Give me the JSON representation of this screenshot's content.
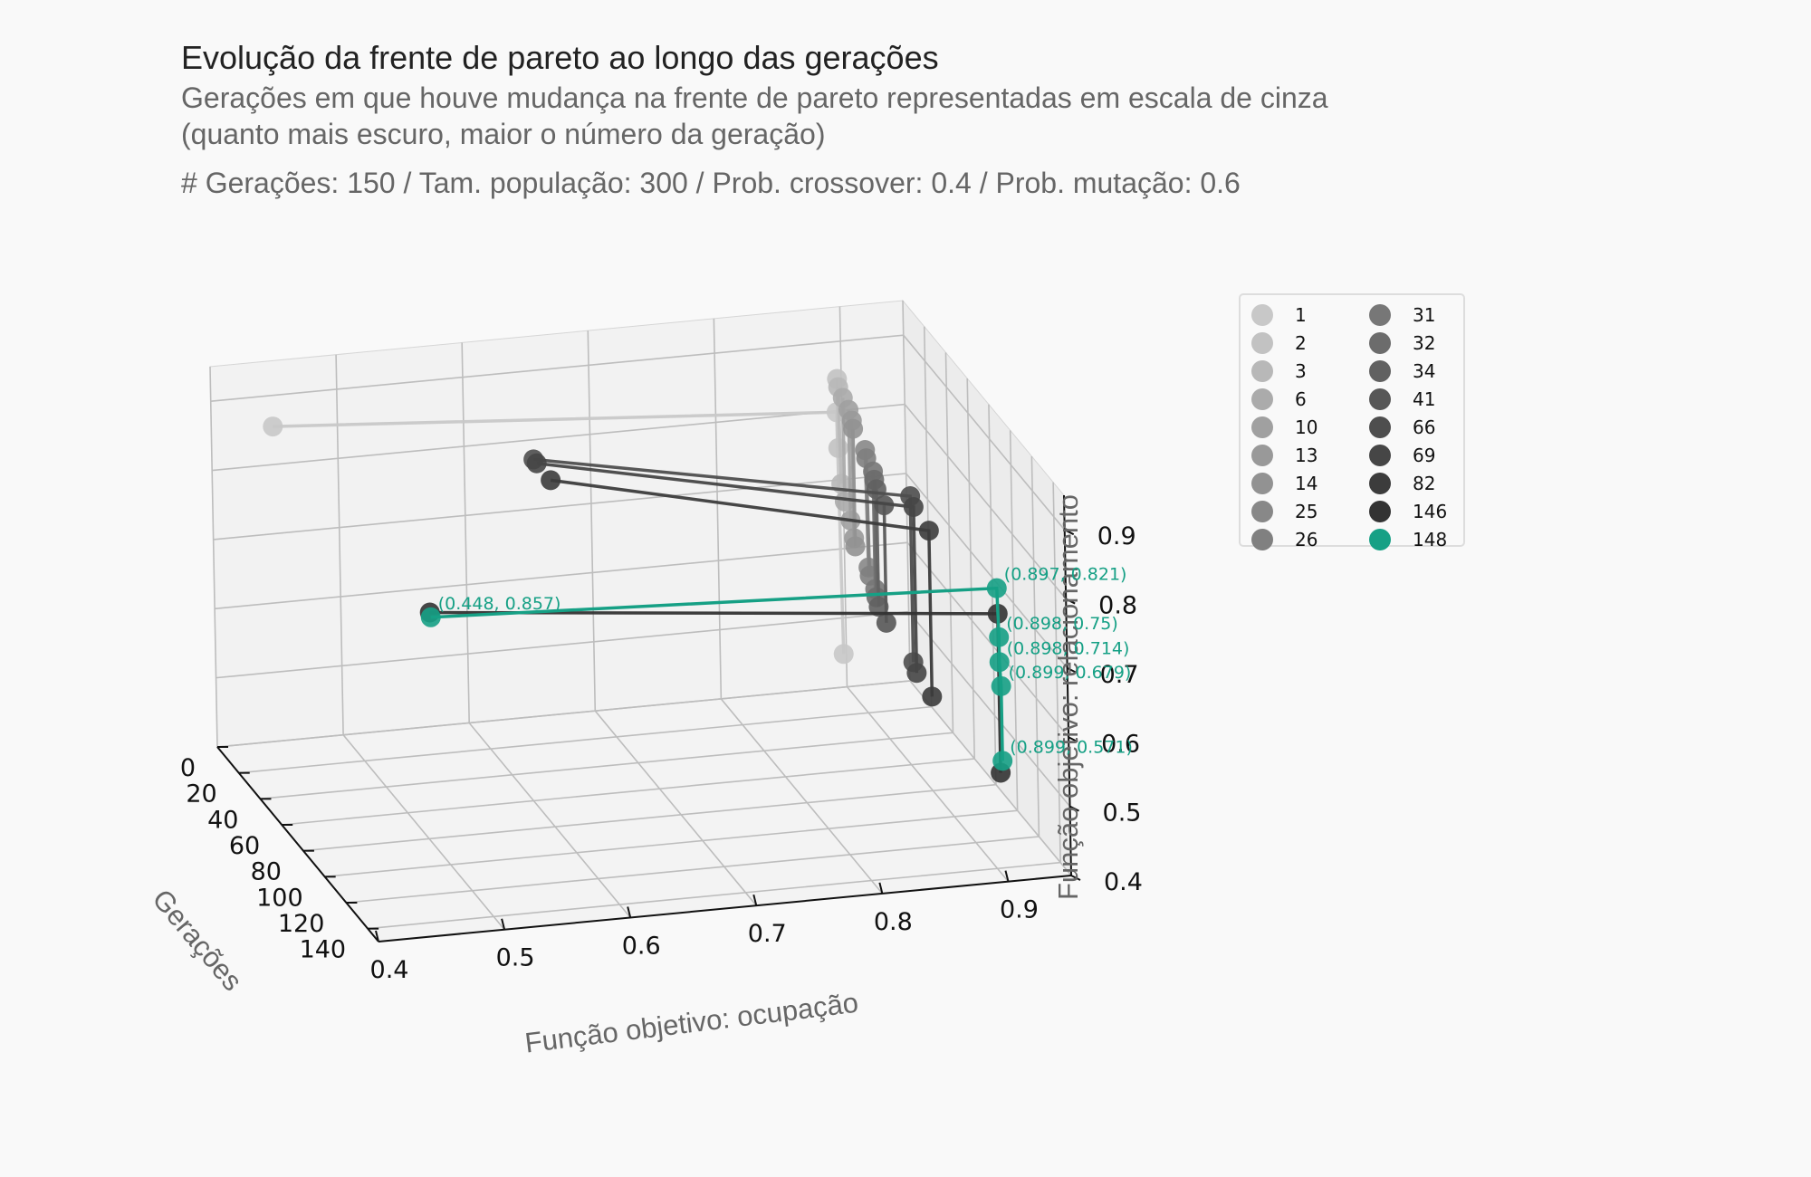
{
  "header": {
    "title": "Evolução da frente de pareto ao longo das gerações",
    "subtitle_line1": "Gerações em que houve mudança na frente de pareto representadas em escala de cinza",
    "subtitle_line2": "(quanto mais escuro, maior o número da geração)",
    "params": "# Gerações: 150 / Tam. população: 300 / Prob. crossover: 0.4 / Prob. mutação: 0.6"
  },
  "chart_data": {
    "type": "scatter",
    "projection": "3d",
    "xlabel": "Função objetivo: ocupação",
    "ylabel": "Gerações",
    "zlabel": "Função objetivo: relacionamento",
    "xlim": [
      0.4,
      0.95
    ],
    "ylim": [
      0,
      150
    ],
    "zlim": [
      0.4,
      0.95
    ],
    "x_ticks": [
      "0.4",
      "0.5",
      "0.6",
      "0.7",
      "0.8",
      "0.9"
    ],
    "y_ticks": [
      "0",
      "20",
      "40",
      "60",
      "80",
      "100",
      "120",
      "140"
    ],
    "z_ticks": [
      "0.4",
      "0.5",
      "0.6",
      "0.7",
      "0.8",
      "0.9"
    ],
    "grid": true,
    "legend_position": "top-right",
    "highlight_color": "#16a085",
    "series": [
      {
        "name": "1",
        "generation": 1,
        "color": "#c8c8c8",
        "points": [
          [
            0.448,
            0.857
          ],
          [
            0.895,
            0.8
          ],
          [
            0.897,
            0.45
          ]
        ]
      },
      {
        "name": "2",
        "generation": 2,
        "color": "#c2c2c2",
        "points": [
          [
            0.895,
            0.85
          ],
          [
            0.895,
            0.75
          ]
        ]
      },
      {
        "name": "3",
        "generation": 3,
        "color": "#b8b8b8",
        "points": [
          [
            0.895,
            0.84
          ],
          [
            0.896,
            0.7
          ]
        ]
      },
      {
        "name": "6",
        "generation": 6,
        "color": "#ababab",
        "points": [
          [
            0.896,
            0.83
          ],
          [
            0.896,
            0.68
          ]
        ]
      },
      {
        "name": "10",
        "generation": 10,
        "color": "#a0a0a0",
        "points": [
          [
            0.897,
            0.82
          ],
          [
            0.897,
            0.66
          ]
        ]
      },
      {
        "name": "13",
        "generation": 13,
        "color": "#999999",
        "points": [
          [
            0.897,
            0.81
          ],
          [
            0.897,
            0.64
          ]
        ]
      },
      {
        "name": "14",
        "generation": 14,
        "color": "#929292",
        "points": [
          [
            0.897,
            0.8
          ],
          [
            0.897,
            0.63
          ]
        ]
      },
      {
        "name": "25",
        "generation": 25,
        "color": "#888888",
        "points": [
          [
            0.897,
            0.79
          ],
          [
            0.898,
            0.62
          ]
        ]
      },
      {
        "name": "26",
        "generation": 26,
        "color": "#808080",
        "points": [
          [
            0.897,
            0.78
          ],
          [
            0.898,
            0.61
          ]
        ]
      },
      {
        "name": "31",
        "generation": 31,
        "color": "#777777",
        "points": [
          [
            0.898,
            0.77
          ],
          [
            0.898,
            0.6
          ]
        ]
      },
      {
        "name": "32",
        "generation": 32,
        "color": "#6c6c6c",
        "points": [
          [
            0.898,
            0.76
          ],
          [
            0.898,
            0.59
          ]
        ]
      },
      {
        "name": "34",
        "generation": 34,
        "color": "#616161",
        "points": [
          [
            0.898,
            0.75
          ],
          [
            0.898,
            0.58
          ]
        ]
      },
      {
        "name": "41",
        "generation": 41,
        "color": "#575757",
        "points": [
          [
            0.898,
            0.74
          ],
          [
            0.898,
            0.57
          ]
        ]
      },
      {
        "name": "66",
        "generation": 66,
        "color": "#4e4e4e",
        "points": [
          [
            0.6,
            0.905
          ],
          [
            0.898,
            0.8
          ],
          [
            0.898,
            0.56
          ]
        ]
      },
      {
        "name": "69",
        "generation": 69,
        "color": "#464646",
        "points": [
          [
            0.6,
            0.905
          ],
          [
            0.898,
            0.79
          ],
          [
            0.898,
            0.55
          ]
        ]
      },
      {
        "name": "82",
        "generation": 82,
        "color": "#3c3c3c",
        "points": [
          [
            0.6,
            0.905
          ],
          [
            0.899,
            0.78
          ],
          [
            0.899,
            0.54
          ]
        ]
      },
      {
        "name": "146",
        "generation": 146,
        "color": "#333333",
        "points": [
          [
            0.449,
            0.86
          ],
          [
            0.899,
            0.78
          ],
          [
            0.899,
            0.55
          ]
        ]
      },
      {
        "name": "148",
        "generation": 148,
        "color": "#16a085",
        "points": [
          [
            0.448,
            0.857
          ],
          [
            0.897,
            0.821
          ],
          [
            0.898,
            0.75
          ],
          [
            0.898,
            0.714
          ],
          [
            0.899,
            0.679
          ],
          [
            0.899,
            0.571
          ]
        ]
      }
    ],
    "annotations": [
      "(0.448, 0.857)",
      "(0.897, 0.821)",
      "(0.898, 0.75)",
      "(0.898, 0.714)",
      "(0.899, 0.679)",
      "(0.899, 0.571)"
    ]
  }
}
